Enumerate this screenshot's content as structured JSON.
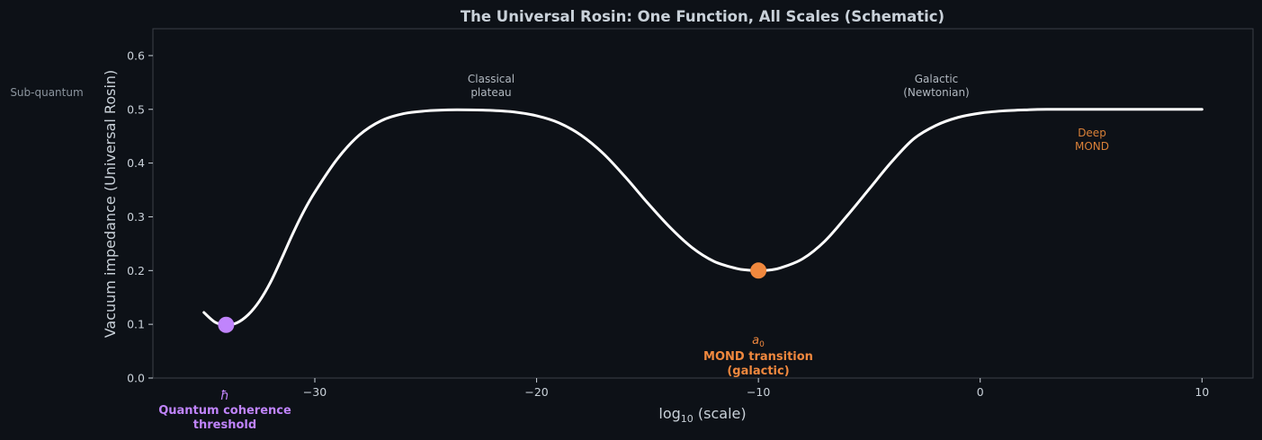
{
  "chart_data": {
    "type": "line",
    "title": "The Universal Rosin: One Function, All Scales (Schematic)",
    "xlabel_prefix": "log",
    "xlabel_sub": "10",
    "xlabel_suffix": " (scale)",
    "ylabel": "Vacuum impedance (Universal Rosin)",
    "xlim": [
      -37.3,
      12.3
    ],
    "ylim": [
      0.0,
      0.65
    ],
    "xticks": [
      -30,
      -20,
      -10,
      0,
      10
    ],
    "xtick_labels": [
      "−30",
      "−20",
      "−10",
      "0",
      "10"
    ],
    "yticks": [
      0.0,
      0.1,
      0.2,
      0.3,
      0.4,
      0.5,
      0.6
    ],
    "ytick_labels": [
      "0.0",
      "0.1",
      "0.2",
      "0.3",
      "0.4",
      "0.5",
      "0.6"
    ],
    "grid": false,
    "line_color": "#ffffff",
    "curve": {
      "x": [
        -35,
        -34.5,
        -34,
        -33.5,
        -33,
        -32.5,
        -32,
        -31.5,
        -31,
        -30.5,
        -30,
        -29,
        -28,
        -27,
        -26,
        -25,
        -24,
        -23,
        -22,
        -21,
        -20,
        -19,
        -18,
        -17,
        -16,
        -15,
        -14,
        -13,
        -12,
        -11,
        -10.5,
        -10,
        -9.5,
        -9,
        -8,
        -7,
        -6,
        -5,
        -4,
        -3,
        -2,
        -1,
        0,
        1,
        2,
        3,
        4,
        5,
        6,
        7,
        8,
        9,
        10
      ],
      "y": [
        0.122,
        0.104,
        0.099,
        0.103,
        0.118,
        0.143,
        0.178,
        0.222,
        0.268,
        0.31,
        0.346,
        0.407,
        0.452,
        0.479,
        0.492,
        0.497,
        0.499,
        0.499,
        0.498,
        0.495,
        0.488,
        0.475,
        0.452,
        0.418,
        0.374,
        0.326,
        0.281,
        0.243,
        0.217,
        0.204,
        0.201,
        0.2,
        0.201,
        0.205,
        0.222,
        0.255,
        0.302,
        0.352,
        0.402,
        0.445,
        0.47,
        0.485,
        0.493,
        0.497,
        0.499,
        0.5,
        0.5,
        0.5,
        0.5,
        0.5,
        0.5,
        0.5,
        0.5
      ]
    },
    "markers": [
      {
        "name": "hbar",
        "x": -34,
        "y": 0.099,
        "color": "#c084fc",
        "symbol": "ħ",
        "label_line1": "Quantum coherence",
        "label_line2": "threshold"
      },
      {
        "name": "a0",
        "x": -10,
        "y": 0.2,
        "color": "#f0883e",
        "symbol_base": "a",
        "symbol_sub": "0",
        "label_line1": "MOND transition",
        "label_line2": "(galactic)"
      }
    ],
    "annotations": {
      "sub_quantum": "Sub-quantum",
      "classical_line1": "Classical",
      "classical_line2": "plateau",
      "galactic_line1": "Galactic",
      "galactic_line2": "(Newtonian)",
      "deep_mond_line1": "Deep",
      "deep_mond_line2": "MOND"
    }
  }
}
